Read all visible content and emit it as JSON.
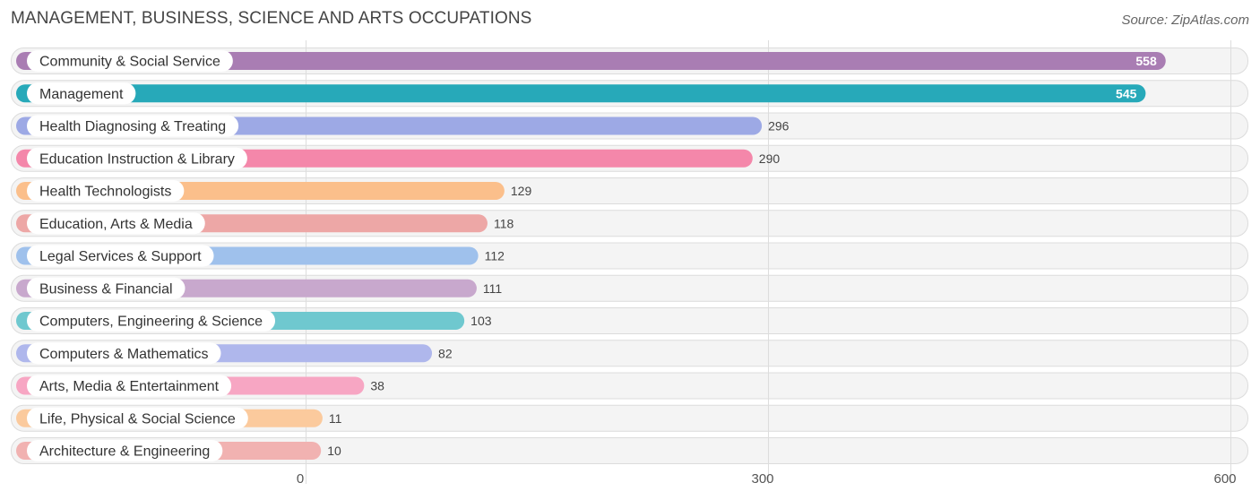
{
  "header": {
    "title": "MANAGEMENT, BUSINESS, SCIENCE AND ARTS OCCUPATIONS",
    "source": "Source: ZipAtlas.com"
  },
  "chart_data": {
    "type": "bar",
    "orientation": "horizontal",
    "title": "MANAGEMENT, BUSINESS, SCIENCE AND ARTS OCCUPATIONS",
    "xlabel": "",
    "ylabel": "",
    "xlim": [
      0,
      600
    ],
    "ticks": [
      {
        "value": 0,
        "label": "0"
      },
      {
        "value": 300,
        "label": "300"
      },
      {
        "value": 600,
        "label": "600"
      }
    ],
    "grid": true,
    "categories": [
      "Community & Social Service",
      "Management",
      "Health Diagnosing & Treating",
      "Education Instruction & Library",
      "Health Technologists",
      "Education, Arts & Media",
      "Legal Services & Support",
      "Business & Financial",
      "Computers, Engineering & Science",
      "Computers & Mathematics",
      "Arts, Media & Entertainment",
      "Life, Physical & Social Science",
      "Architecture & Engineering"
    ],
    "values": [
      558,
      545,
      296,
      290,
      129,
      118,
      112,
      111,
      103,
      82,
      38,
      11,
      10
    ],
    "value_labels": [
      "558",
      "545",
      "296",
      "290",
      "129",
      "118",
      "112",
      "111",
      "103",
      "82",
      "38",
      "11",
      "10"
    ],
    "colors": [
      "#a97db3",
      "#27a9b9",
      "#9da9e5",
      "#f487aa",
      "#fbbf8b",
      "#eda7a6",
      "#9fc1ec",
      "#c8a8cd",
      "#6fc8cf",
      "#afb7ec",
      "#f7a6c3",
      "#fbca9d",
      "#f1b2b1"
    ]
  }
}
